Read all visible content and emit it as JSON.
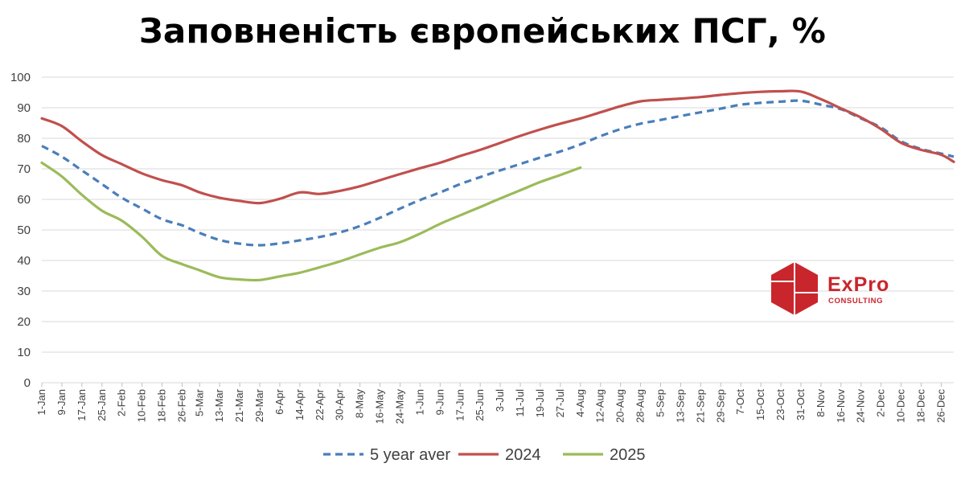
{
  "chart_data": {
    "type": "line",
    "title": "Заповненість європейських ПСГ, %",
    "ylim": [
      0,
      100
    ],
    "yticks": [
      0,
      10,
      20,
      30,
      40,
      50,
      60,
      70,
      80,
      90,
      100
    ],
    "grid": true,
    "legend_placement": "bottom-center",
    "x_tick_labels": [
      "1-Jan",
      "9-Jan",
      "17-Jan",
      "25-Jan",
      "2-Feb",
      "10-Feb",
      "18-Feb",
      "26-Feb",
      "5-Mar",
      "13-Mar",
      "21-Mar",
      "29-Mar",
      "6-Apr",
      "14-Apr",
      "22-Apr",
      "30-Apr",
      "8-May",
      "16-May",
      "24-May",
      "1-Jun",
      "9-Jun",
      "17-Jun",
      "25-Jun",
      "3-Jul",
      "11-Jul",
      "19-Jul",
      "27-Jul",
      "4-Aug",
      "12-Aug",
      "20-Aug",
      "28-Aug",
      "5-Sep",
      "13-Sep",
      "21-Sep",
      "29-Sep",
      "7-Oct",
      "15-Oct",
      "23-Oct",
      "31-Oct",
      "8-Nov",
      "16-Nov",
      "24-Nov",
      "2-Dec",
      "10-Dec",
      "18-Dec",
      "26-Dec"
    ],
    "series": [
      {
        "name": "5 year aver",
        "color": "#4a7ebb",
        "style": "dashed",
        "x": [
          "1-Jan",
          "9-Jan",
          "17-Jan",
          "25-Jan",
          "2-Feb",
          "10-Feb",
          "18-Feb",
          "26-Feb",
          "5-Mar",
          "13-Mar",
          "21-Mar",
          "29-Mar",
          "6-Apr",
          "14-Apr",
          "22-Apr",
          "30-Apr",
          "8-May",
          "16-May",
          "24-May",
          "1-Jun",
          "9-Jun",
          "17-Jun",
          "25-Jun",
          "3-Jul",
          "11-Jul",
          "19-Jul",
          "27-Jul",
          "4-Aug",
          "12-Aug",
          "20-Aug",
          "28-Aug",
          "5-Sep",
          "13-Sep",
          "21-Sep",
          "29-Sep",
          "7-Oct",
          "15-Oct",
          "23-Oct",
          "31-Oct",
          "8-Nov",
          "16-Nov",
          "24-Nov",
          "2-Dec",
          "10-Dec",
          "18-Dec",
          "26-Dec",
          "31-Dec"
        ],
        "values": [
          77.5,
          74,
          69.5,
          65,
          60.5,
          57,
          53.5,
          51.5,
          49,
          46.7,
          45.5,
          45,
          45.6,
          46.6,
          47.7,
          49.2,
          51.3,
          54,
          57,
          59.8,
          62.3,
          65,
          67.3,
          69.5,
          71.6,
          73.7,
          75.7,
          78,
          80.7,
          83,
          84.8,
          86,
          87.3,
          88.5,
          89.7,
          91,
          91.6,
          92,
          92.3,
          91,
          89.5,
          86.5,
          83.5,
          79,
          76.5,
          75,
          74
        ]
      },
      {
        "name": "2024",
        "color": "#c0504d",
        "style": "solid",
        "x": [
          "1-Jan",
          "9-Jan",
          "17-Jan",
          "25-Jan",
          "2-Feb",
          "10-Feb",
          "18-Feb",
          "26-Feb",
          "5-Mar",
          "13-Mar",
          "21-Mar",
          "29-Mar",
          "6-Apr",
          "14-Apr",
          "22-Apr",
          "30-Apr",
          "8-May",
          "16-May",
          "24-May",
          "1-Jun",
          "9-Jun",
          "17-Jun",
          "25-Jun",
          "3-Jul",
          "11-Jul",
          "19-Jul",
          "27-Jul",
          "4-Aug",
          "12-Aug",
          "20-Aug",
          "28-Aug",
          "5-Sep",
          "13-Sep",
          "21-Sep",
          "29-Sep",
          "7-Oct",
          "15-Oct",
          "23-Oct",
          "31-Oct",
          "8-Nov",
          "16-Nov",
          "24-Nov",
          "2-Dec",
          "10-Dec",
          "18-Dec",
          "26-Dec",
          "31-Dec"
        ],
        "values": [
          86.5,
          84,
          79,
          74.5,
          71.5,
          68.5,
          66.3,
          64.6,
          62.3,
          60.5,
          59.5,
          58.8,
          60.2,
          62.3,
          61.8,
          62.8,
          64.3,
          66.3,
          68.3,
          70.2,
          72,
          74.2,
          76.2,
          78.5,
          80.8,
          82.9,
          84.8,
          86.5,
          88.5,
          90.5,
          92.1,
          92.6,
          93,
          93.5,
          94.2,
          94.8,
          95.2,
          95.4,
          95.3,
          92.8,
          89.8,
          86.8,
          83,
          78.5,
          76.2,
          74.6,
          72.3
        ]
      },
      {
        "name": "2025",
        "color": "#9bbb59",
        "style": "solid",
        "x": [
          "1-Jan",
          "9-Jan",
          "17-Jan",
          "25-Jan",
          "2-Feb",
          "10-Feb",
          "18-Feb",
          "26-Feb",
          "5-Mar",
          "13-Mar",
          "21-Mar",
          "29-Mar",
          "6-Apr",
          "14-Apr",
          "22-Apr",
          "30-Apr",
          "8-May",
          "16-May",
          "24-May",
          "1-Jun",
          "9-Jun",
          "17-Jun",
          "25-Jun",
          "3-Jul",
          "11-Jul",
          "19-Jul",
          "27-Jul",
          "4-Aug"
        ],
        "values": [
          72,
          67.5,
          61.5,
          56.3,
          53,
          47.8,
          41.5,
          38.8,
          36.8,
          34.5,
          33.8,
          33.6,
          34.8,
          36,
          37.8,
          39.7,
          42,
          44.2,
          46,
          48.8,
          52,
          54.8,
          57.5,
          60.3,
          63,
          65.7,
          68,
          70.4
        ]
      }
    ]
  },
  "logo": {
    "brand": "ExPro",
    "subtitle": "CONSULTING",
    "color": "#c9252c"
  }
}
